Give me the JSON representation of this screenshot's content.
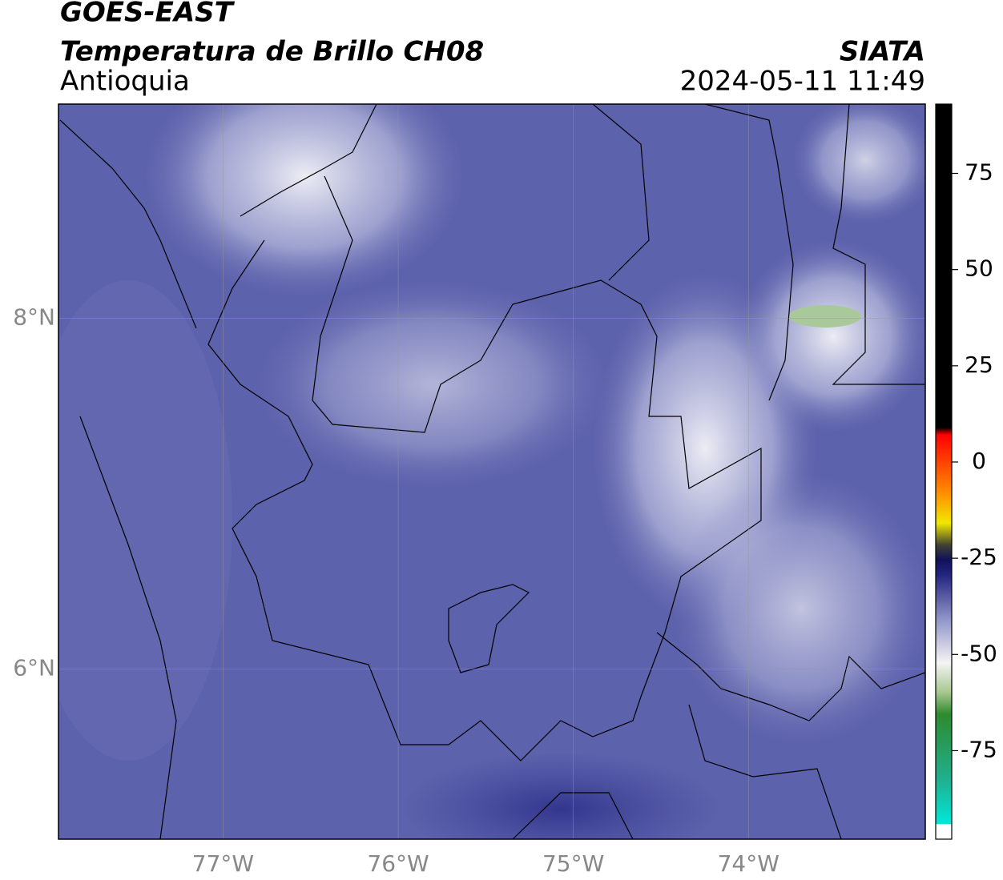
{
  "header": {
    "title": "GOES-EAST",
    "subtitle": "Temperatura de Brillo CH08",
    "region": "Antioquia",
    "source": "SIATA",
    "datetime": "2024-05-11 11:49"
  },
  "map": {
    "xlim": [
      -77.94,
      -72.99
    ],
    "ylim": [
      5.03,
      9.22
    ],
    "xticks": [
      {
        "value": -77,
        "label": "77°W"
      },
      {
        "value": -76,
        "label": "76°W"
      },
      {
        "value": -75,
        "label": "75°W"
      },
      {
        "value": -74,
        "label": "74°W"
      }
    ],
    "yticks": [
      {
        "value": 8,
        "label": "8°N"
      },
      {
        "value": 6,
        "label": "6°N"
      }
    ]
  },
  "colorbar": {
    "lim": [
      -98,
      93
    ],
    "ticks": [
      75,
      50,
      25,
      0,
      -25,
      -50,
      -75
    ]
  }
}
